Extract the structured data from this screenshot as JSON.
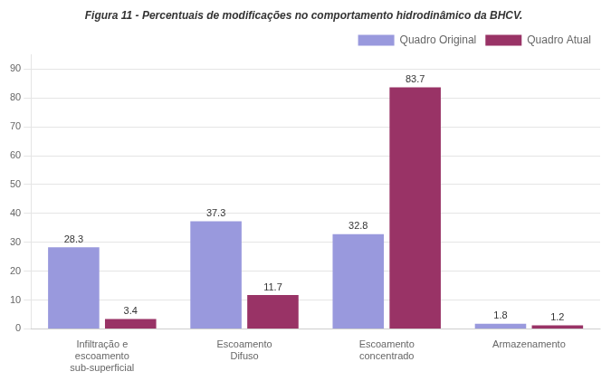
{
  "chart_data": {
    "type": "bar",
    "title": "Figura 11 - Percentuais de modificações no comportamento hidrodinâmico da BHCV.",
    "categories": [
      "Infiltração e\nescoamento\nsub-superficial",
      "Escoamento\nDifuso",
      "Escoamento\nconcentrado",
      "Armazenamento"
    ],
    "series": [
      {
        "name": "Quadro Original",
        "color": "#9999dd",
        "values": [
          28.3,
          37.3,
          32.8,
          1.8
        ]
      },
      {
        "name": "Quadro Atual",
        "color": "#993366",
        "values": [
          3.4,
          11.7,
          83.7,
          1.2
        ]
      }
    ],
    "ylim": [
      0,
      95
    ],
    "yticks": [
      0,
      10,
      20,
      30,
      40,
      50,
      60,
      70,
      80,
      90
    ],
    "grid": true,
    "legend": "upper right",
    "data_labels": true
  }
}
